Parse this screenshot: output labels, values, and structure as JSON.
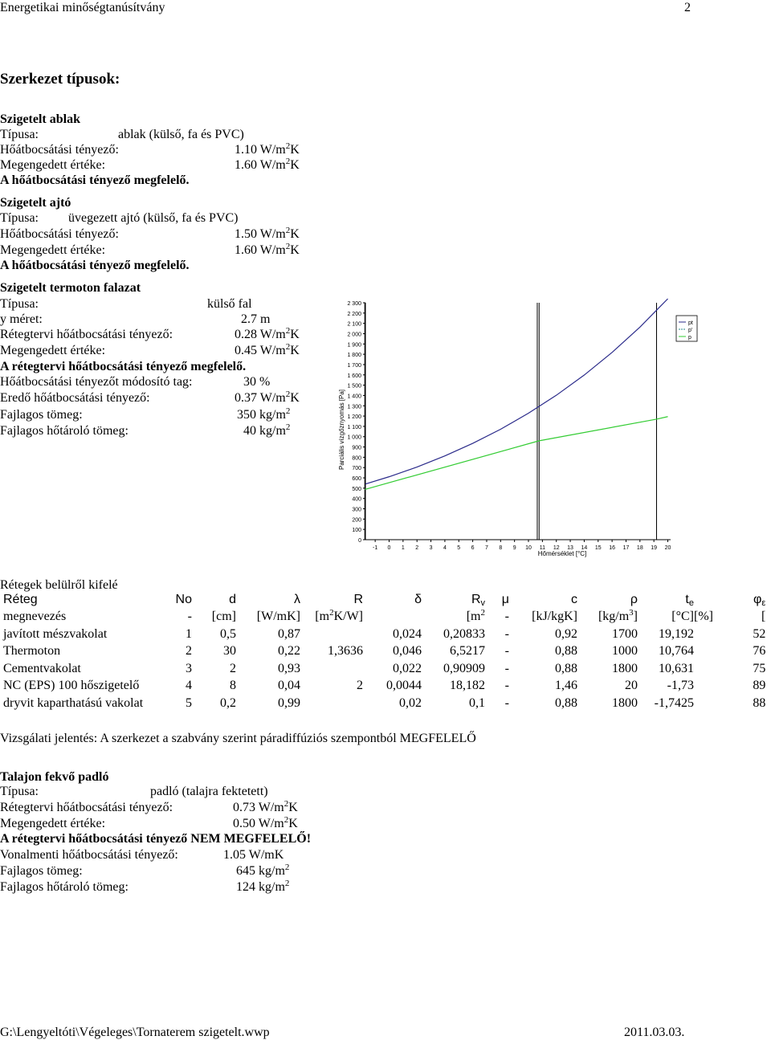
{
  "header": {
    "title": "Energetikai minőségtanúsítvány",
    "page": "2"
  },
  "section_title": "Szerkezet típusok:",
  "window": {
    "title": "Szigetelt ablak",
    "type_label": "Típusa:",
    "type_value": "ablak (külső, fa és PVC)",
    "u_label": "Hőátbocsátási tényező:",
    "u_value": "1.10 W/m",
    "req_label": "Megengedett értéke:",
    "req_value": "1.60 W/m",
    "unit_exp": "2",
    "unit_tail": "K",
    "result": "A hőátbocsátási tényező megfelelő."
  },
  "door": {
    "title": "Szigetelt ajtó",
    "type_label": "Típusa:",
    "type_value": "üvegezett ajtó (külső, fa és PVC)",
    "u_label": "Hőátbocsátási tényező:",
    "u_value": "1.50 W/m",
    "req_label": "Megengedett értéke:",
    "req_value": "1.60 W/m",
    "unit_exp": "2",
    "unit_tail": "K",
    "result": "A hőátbocsátási tényező megfelelő."
  },
  "wall": {
    "title": "Szigetelt termoton falazat",
    "type_label": "Típusa:",
    "type_value": "külső fal",
    "y_label": "y méret:",
    "y_value": "2.7 m",
    "u_label": "Rétegtervi hőátbocsátási tényező:",
    "u_value": "0.28 W/m",
    "req_label": "Megengedett értéke:",
    "req_value": "0.45 W/m",
    "result": "A rétegtervi hőátbocsátási tényező megfelelő.",
    "mod_label": "Hőátbocsátási tényezőt módosító tag:",
    "mod_value": "30 %",
    "res_label": "Eredő hőátbocsátási tényező:",
    "res_value": "0.37 W/m",
    "mass_label": "Fajlagos tömeg:",
    "mass_value": "350 kg/m",
    "heat_label": "Fajlagos hőtároló tömeg:",
    "heat_value": "40 kg/m",
    "unit_exp": "2",
    "unit_tail": "K"
  },
  "layers": {
    "caption": "Rétegek belülről kifelé",
    "headers": [
      "Réteg",
      "No",
      "d",
      "λ",
      "R",
      "δ",
      "R",
      "μ",
      "c",
      "ρ",
      "t",
      "φ"
    ],
    "header_subs": {
      "rv": "v",
      "te": "e",
      "phi": "ε"
    },
    "units": [
      "megnevezés",
      "-",
      "[cm]",
      "[W/mK]",
      "[m",
      "K/W]",
      "[m",
      "-",
      "[kJ/kgK]",
      "[kg/m",
      "]",
      "[°C]",
      "[%]",
      "["
    ],
    "unit_exps": {
      "r": "2",
      "rv": "2",
      "rho": "3"
    },
    "rows": [
      {
        "name": "javított mészvakolat",
        "no": "1",
        "d": "0,5",
        "lambda": "0,87",
        "r": "",
        "delta": "0,024",
        "rv": "0,20833",
        "mu": "-",
        "c": "0,92",
        "rho": "1700",
        "te": "19,192",
        "phi": "52"
      },
      {
        "name": "Thermoton",
        "no": "2",
        "d": "30",
        "lambda": "0,22",
        "r": "1,3636",
        "delta": "0,046",
        "rv": "6,5217",
        "mu": "-",
        "c": "0,88",
        "rho": "1000",
        "te": "10,764",
        "phi": "76"
      },
      {
        "name": "Cementvakolat",
        "no": "3",
        "d": "2",
        "lambda": "0,93",
        "r": "",
        "delta": "0,022",
        "rv": "0,90909",
        "mu": "-",
        "c": "0,88",
        "rho": "1800",
        "te": "10,631",
        "phi": "75"
      },
      {
        "name": "NC (EPS) 100 hőszigetelő",
        "no": "4",
        "d": "8",
        "lambda": "0,04",
        "r": "2",
        "delta": "0,0044",
        "rv": "18,182",
        "mu": "-",
        "c": "1,46",
        "rho": "20",
        "te": "-1,73",
        "phi": "89"
      },
      {
        "name": "dryvit kaparthatású vakolat",
        "no": "5",
        "d": "0,2",
        "lambda": "0,99",
        "r": "",
        "delta": "0,02",
        "rv": "0,1",
        "mu": "-",
        "c": "0,88",
        "rho": "1800",
        "te": "-1,7425",
        "phi": "88"
      }
    ]
  },
  "report": "Vizsgálati jelentés: A szerkezet a szabvány szerint páradiffúziós szempontból MEGFELELŐ",
  "floor": {
    "title": "Talajon fekvő padló",
    "type_label": "Típusa:",
    "type_value": "padló (talajra fektetett)",
    "u_label": "Rétegtervi hőátbocsátási tényező:",
    "u_value": "0.73 W/m",
    "req_label": "Megengedett értéke:",
    "req_value": "0.50 W/m",
    "result": "A rétegtervi hőátbocsátási tényező NEM MEGFELELŐ!",
    "line_label": "Vonalmenti hőátbocsátási tényező:",
    "line_value": "1.05 W/mK",
    "mass_label": "Fajlagos tömeg:",
    "mass_value": "645 kg/m",
    "heat_label": "Fajlagos hőtároló tömeg:",
    "heat_value": "124 kg/m",
    "unit_exp": "2",
    "unit_tail": "K"
  },
  "footer": {
    "path": "G:\\Lengyeltóti\\Végeleges\\Tornaterem szigetelt.wwp",
    "date": "2011.03.03."
  },
  "chart_data": {
    "type": "line",
    "xlabel": "Hőmérséklet [°C]",
    "ylabel": "Parciális vízgőznyomás [Pa]",
    "x_ticks": [
      -1,
      0,
      1,
      2,
      3,
      4,
      5,
      6,
      7,
      8,
      9,
      10,
      11,
      12,
      13,
      14,
      15,
      16,
      17,
      18,
      19,
      20
    ],
    "y_ticks": [
      "0",
      "100",
      "200",
      "300",
      "400",
      "500",
      "600",
      "700",
      "800",
      "900",
      "1 000",
      "1 100",
      "1 200",
      "1 300",
      "1 400",
      "1 500",
      "1 600",
      "1 700",
      "1 800",
      "1 900",
      "2 000",
      "2 100",
      "2 200",
      "2 300"
    ],
    "xlim": [
      -1.7,
      20.2
    ],
    "ylim": [
      0,
      2300
    ],
    "legend": [
      "pt",
      "p'",
      "p"
    ],
    "legend_position": "top-right",
    "grid": false,
    "boundaries_x": [
      -1.73,
      -1.7425,
      10.631,
      10.764,
      19.192
    ],
    "series": [
      {
        "name": "pt",
        "color": "#2a2a8a",
        "x": [
          -1.7,
          0,
          2,
          4,
          6,
          8,
          10,
          12,
          14,
          16,
          18,
          20
        ],
        "y": [
          540,
          611,
          705,
          813,
          935,
          1072,
          1228,
          1402,
          1598,
          1818,
          2064,
          2339
        ]
      },
      {
        "name": "p",
        "color": "#33cc33",
        "x": [
          -1.7,
          -1.73,
          10.631,
          10.764,
          19.192,
          20
        ],
        "y": [
          488,
          488,
          955,
          960,
          1170,
          1195
        ]
      }
    ]
  }
}
